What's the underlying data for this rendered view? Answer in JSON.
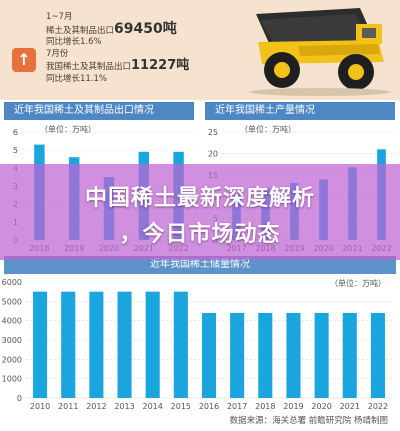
{
  "banner": {
    "line1": "1~7月",
    "line2_prefix": "稀土及其制品出口",
    "line2_value": "69450吨",
    "line3": "同比增长1.6%",
    "line4": "7月份",
    "line5_prefix": "我国稀土及其制品出口",
    "line5_value": "11227吨",
    "line6": "同比增长11.1%",
    "mark": "↑",
    "truck_icon": "mining-truck-icon"
  },
  "overlay": {
    "line1": "中国稀土最新深度解析",
    "line2": "，今日市场动态"
  },
  "source": "数据来源：海关总署 前瞻研究院 杨靖制图",
  "colors": {
    "bar": "#1aa5de",
    "title_bar": "#4d88c4",
    "overlay": "#be64d2"
  },
  "chart_data": [
    {
      "type": "bar",
      "title": "近年我国稀土及其制品出口情况",
      "unit": "（单位：万吨）",
      "categories": [
        "2018",
        "2019",
        "2020",
        "2021",
        "2022"
      ],
      "values": [
        5.3,
        4.6,
        3.5,
        4.9,
        4.9
      ],
      "ylim": [
        0,
        6
      ],
      "yticks": [
        0,
        1,
        2,
        3,
        4,
        5,
        6
      ]
    },
    {
      "type": "bar",
      "title": "近年我国稀土产量情况",
      "unit": "（单位：万吨）",
      "categories": [
        "2017",
        "2018",
        "2019",
        "2020",
        "2021",
        "2022"
      ],
      "values": [
        10.5,
        12,
        13.2,
        14,
        16.8,
        21
      ],
      "ylim": [
        0,
        25
      ],
      "yticks": [
        0,
        5,
        10,
        15,
        20,
        25
      ]
    },
    {
      "type": "bar",
      "title": "近年我国稀土储量情况",
      "unit": "（单位：万吨）",
      "categories": [
        "2010",
        "2011",
        "2012",
        "2013",
        "2014",
        "2015",
        "2016",
        "2017",
        "2018",
        "2019",
        "2020",
        "2021",
        "2022"
      ],
      "values": [
        5500,
        5500,
        5500,
        5500,
        5500,
        5500,
        4400,
        4400,
        4400,
        4400,
        4400,
        4400,
        4400
      ],
      "ylim": [
        0,
        6000
      ],
      "yticks": [
        0,
        1000,
        2000,
        3000,
        4000,
        5000,
        6000
      ]
    }
  ]
}
